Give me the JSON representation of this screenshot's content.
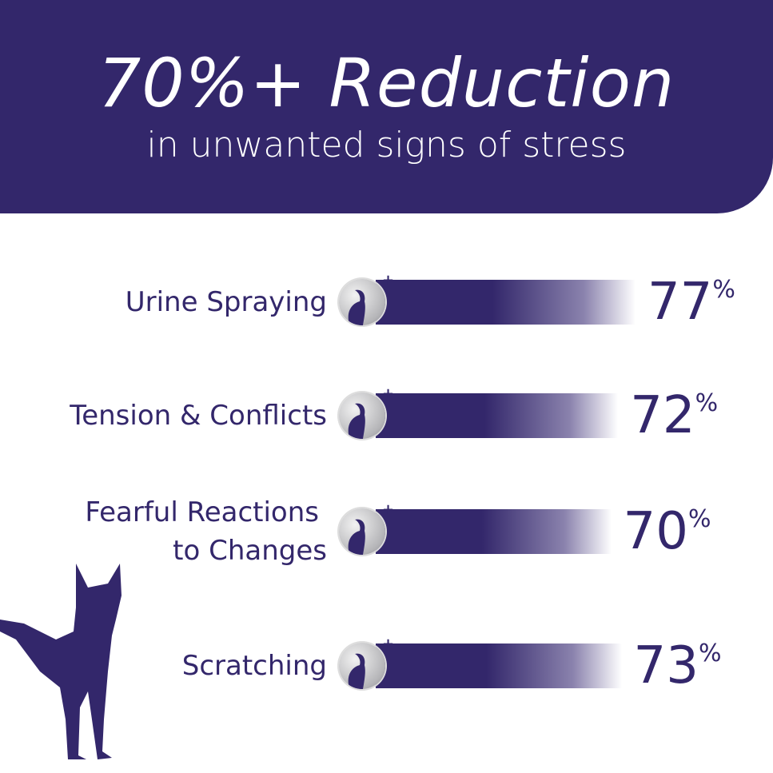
{
  "header": {
    "title": "70%+ Reduction",
    "subtitle": "in unwanted signs of stress"
  },
  "colors": {
    "brand": "#33276b",
    "background": "#ffffff"
  },
  "chart_data": {
    "type": "bar",
    "orientation": "horizontal",
    "categories": [
      "Urine Spraying",
      "Tension & Conflicts",
      "Fearful Reactions to Changes",
      "Scratching"
    ],
    "category_lines": [
      [
        "Urine Spraying"
      ],
      [
        "Tension & Conflicts"
      ],
      [
        "Fearful Reactions",
        "to Changes"
      ],
      [
        "Scratching"
      ]
    ],
    "values": [
      77,
      72,
      70,
      73
    ],
    "value_labels": [
      "77",
      "72",
      "70",
      "73"
    ],
    "unit": "%",
    "icons": [
      "cat-spraying-icon",
      "cats-conflict-icon",
      "cat-fearful-icon",
      "cat-scratching-icon"
    ]
  }
}
